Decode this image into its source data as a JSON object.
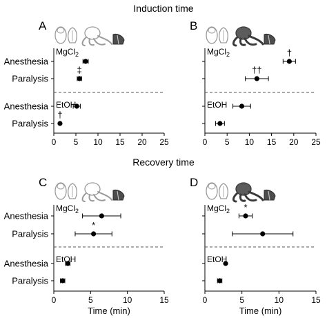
{
  "figure": {
    "section_titles": [
      "Induction time",
      "Recovery time"
    ]
  },
  "chart_data": [
    {
      "type": "scatter",
      "panel_label": "A",
      "section": "Induction time",
      "xlabel": "",
      "xlim": [
        0,
        25
      ],
      "x_ticks": [
        0,
        5,
        10,
        15,
        20,
        25
      ],
      "categories": [
        "Anesthesia",
        "Paralysis",
        "Anesthesia",
        "Paralysis"
      ],
      "groups": [
        {
          "name": "MgCl2",
          "label_main": "MgCl",
          "label_sub": "2",
          "rows": [
            0,
            1
          ]
        },
        {
          "name": "EtOH",
          "label_main": "EtOH",
          "label_sub": "",
          "rows": [
            2,
            3
          ]
        }
      ],
      "points": [
        {
          "group": "MgCl2",
          "category": "Anesthesia",
          "x": 7.2,
          "err": 0.6,
          "annotation": ""
        },
        {
          "group": "MgCl2",
          "category": "Paralysis",
          "x": 5.8,
          "err": 0.5,
          "annotation": "‡"
        },
        {
          "group": "EtOH",
          "category": "Anesthesia",
          "x": 5.2,
          "err": 0.8,
          "annotation": ""
        },
        {
          "group": "EtOH",
          "category": "Paralysis",
          "x": 1.4,
          "err": 0,
          "annotation": "†"
        }
      ],
      "silhouettes": {
        "highlighted": "none"
      }
    },
    {
      "type": "scatter",
      "panel_label": "B",
      "section": "Induction time",
      "xlabel": "",
      "xlim": [
        0,
        25
      ],
      "x_ticks": [
        0,
        5,
        10,
        15,
        20,
        25
      ],
      "categories": [
        "",
        "",
        "",
        ""
      ],
      "groups": [
        {
          "name": "MgCl2",
          "label_main": "MgCl",
          "label_sub": "2",
          "rows": [
            0,
            1
          ]
        },
        {
          "name": "EtOH",
          "label_main": "EtOH",
          "label_sub": "",
          "rows": [
            2,
            3
          ]
        }
      ],
      "points": [
        {
          "group": "MgCl2",
          "category": "Anesthesia",
          "x": 19.0,
          "err": 1.4,
          "annotation": "†"
        },
        {
          "group": "MgCl2",
          "category": "Paralysis",
          "x": 11.7,
          "err": 2.6,
          "annotation": "††"
        },
        {
          "group": "EtOH",
          "category": "Anesthesia",
          "x": 8.3,
          "err": 2.0,
          "annotation": ""
        },
        {
          "group": "EtOH",
          "category": "Paralysis",
          "x": 3.4,
          "err": 1.0,
          "annotation": ""
        }
      ],
      "silhouettes": {
        "highlighted": "octopus"
      }
    },
    {
      "type": "scatter",
      "panel_label": "C",
      "section": "Recovery time",
      "xlabel": "Time (min)",
      "xlim": [
        0,
        15
      ],
      "x_ticks": [
        0,
        5,
        10,
        15
      ],
      "categories": [
        "Anesthesia",
        "Paralysis",
        "Anesthesia",
        "Paralysis"
      ],
      "groups": [
        {
          "name": "MgCl2",
          "label_main": "MgCl",
          "label_sub": "2",
          "rows": [
            0,
            1
          ]
        },
        {
          "name": "EtOH",
          "label_main": "EtOH",
          "label_sub": "",
          "rows": [
            2,
            3
          ]
        }
      ],
      "points": [
        {
          "group": "MgCl2",
          "category": "Anesthesia",
          "x": 6.5,
          "err": 2.6,
          "annotation": ""
        },
        {
          "group": "MgCl2",
          "category": "Paralysis",
          "x": 5.4,
          "err": 2.5,
          "annotation": "*"
        },
        {
          "group": "EtOH",
          "category": "Anesthesia",
          "x": 1.9,
          "err": 0.3,
          "annotation": ""
        },
        {
          "group": "EtOH",
          "category": "Paralysis",
          "x": 1.2,
          "err": 0.3,
          "annotation": ""
        }
      ],
      "silhouettes": {
        "highlighted": "none"
      }
    },
    {
      "type": "scatter",
      "panel_label": "D",
      "section": "Recovery time",
      "xlabel": "Time (min)",
      "xlim": [
        0,
        15
      ],
      "x_ticks": [
        0,
        5,
        10,
        15
      ],
      "categories": [
        "",
        "",
        "",
        ""
      ],
      "groups": [
        {
          "name": "MgCl2",
          "label_main": "MgCl",
          "label_sub": "2",
          "rows": [
            0,
            1
          ]
        },
        {
          "name": "EtOH",
          "label_main": "EtOH",
          "label_sub": "",
          "rows": [
            2,
            3
          ]
        }
      ],
      "points": [
        {
          "group": "MgCl2",
          "category": "Anesthesia",
          "x": 5.5,
          "err": 0.9,
          "annotation": "*"
        },
        {
          "group": "MgCl2",
          "category": "Paralysis",
          "x": 7.8,
          "err": 4.1,
          "annotation": ""
        },
        {
          "group": "EtOH",
          "category": "Anesthesia",
          "x": 2.8,
          "err": 0,
          "annotation": ""
        },
        {
          "group": "EtOH",
          "category": "Paralysis",
          "x": 2.0,
          "err": 0.3,
          "annotation": ""
        }
      ],
      "silhouettes": {
        "highlighted": "octopus"
      }
    }
  ]
}
